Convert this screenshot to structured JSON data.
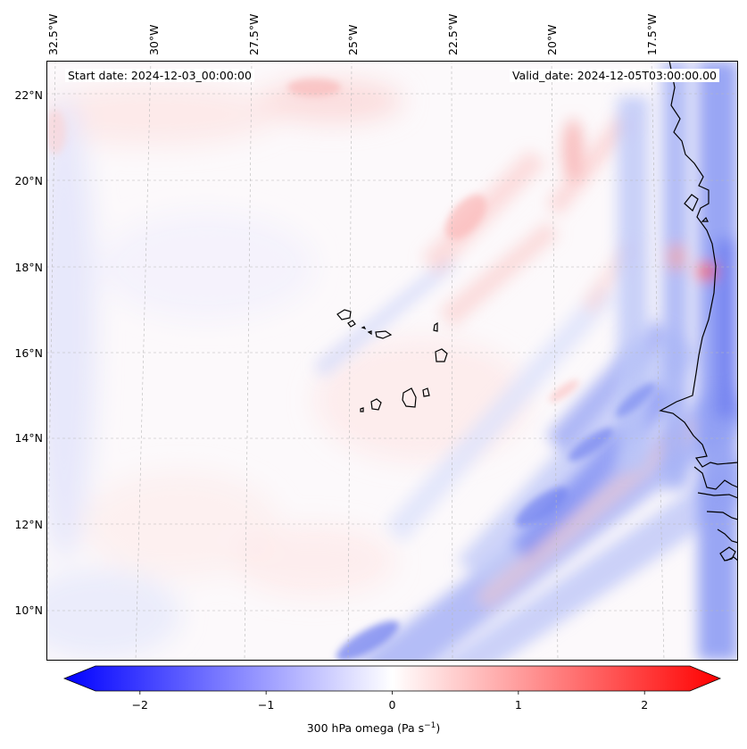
{
  "map": {
    "start_date": "Start date: 2024-12-03_00:00:00",
    "valid_date": "Valid_date: 2024-12-05T03:00:00.00",
    "lon_labels": [
      "32.5°W",
      "30°W",
      "27.5°W",
      "25°W",
      "22.5°W",
      "20°W",
      "17.5°W"
    ],
    "lat_labels": [
      "22°N",
      "20°N",
      "18°N",
      "16°N",
      "14°N",
      "12°N",
      "10°N"
    ],
    "region": "Cape Verde Islands and West African coast",
    "colormap": "bwr"
  },
  "colorbar": {
    "ticks": [
      "−2",
      "−1",
      "0",
      "1",
      "2"
    ],
    "tick_values": [
      -2,
      -1,
      0,
      1,
      2
    ],
    "range": [
      -2.6,
      2.6
    ],
    "min_color": "#0000ff",
    "mid_color": "#ffffff",
    "max_color": "#ff0000",
    "label": "300 hPa omega (Pa s",
    "label_sup": "−1",
    "label_end": ")"
  }
}
